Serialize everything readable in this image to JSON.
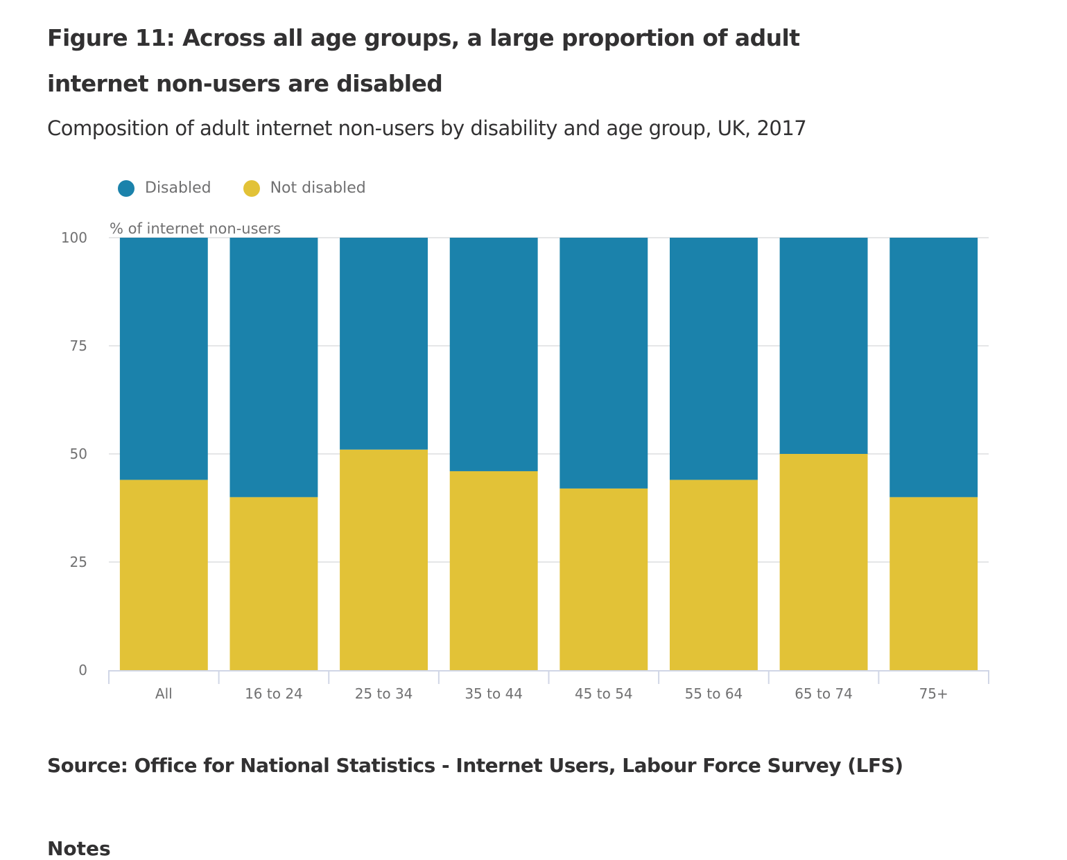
{
  "figure": {
    "title": "Figure 11: Across all age groups, a large proportion of adult internet non-users are disabled",
    "subtitle": "Composition of adult internet non-users by disability and age group, UK, 2017",
    "source": "Source: Office for National Statistics - Internet Users, Labour Force Survey (LFS)",
    "notes_heading": "Notes"
  },
  "colors": {
    "disabled": "#1b82ab",
    "not_disabled": "#e2c237",
    "grid": "#e5e6e7",
    "axis": "#d0d6e6",
    "tick_text": "#707071"
  },
  "chart_data": {
    "type": "bar",
    "stacked": true,
    "title": "Figure 11: Across all age groups, a large proportion of adult internet non-users are disabled",
    "subtitle": "Composition of adult internet non-users by disability and age group, UK, 2017",
    "xlabel": "",
    "ylabel": "% of internet non-users",
    "ylim": [
      0,
      100
    ],
    "yticks": [
      0,
      25,
      50,
      75,
      100
    ],
    "grid": true,
    "legend_position": "top-left",
    "categories": [
      "All",
      "16 to 24",
      "25 to 34",
      "35 to 44",
      "45 to 54",
      "55 to 64",
      "65 to 74",
      "75+"
    ],
    "series": [
      {
        "name": "Not disabled",
        "color": "#e2c237",
        "values": [
          44,
          40,
          51,
          46,
          42,
          44,
          50,
          40
        ]
      },
      {
        "name": "Disabled",
        "color": "#1b82ab",
        "values": [
          56,
          60,
          49,
          54,
          58,
          56,
          50,
          60
        ]
      }
    ]
  }
}
